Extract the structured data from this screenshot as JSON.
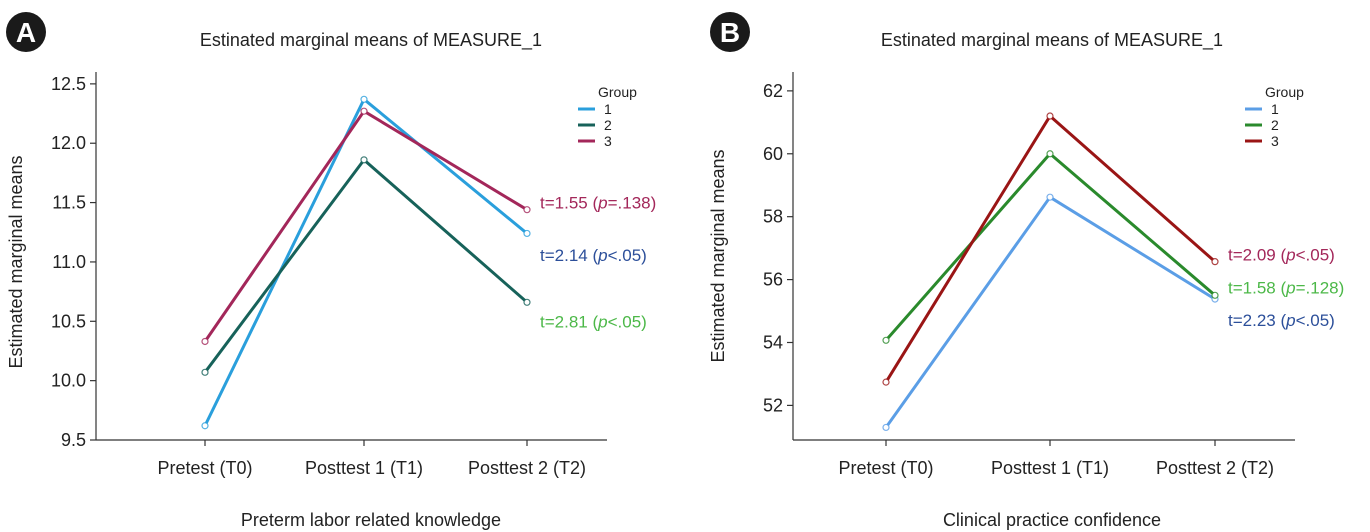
{
  "panels": [
    {
      "badge": "A",
      "title": "Estinated marginal means of MEASURE_1",
      "legend_title": "Group",
      "xlabel": "Preterm labor related knowledge",
      "ylabel": "Estimated marginal means"
    },
    {
      "badge": "B",
      "title": "Estinated marginal means of MEASURE_1",
      "legend_title": "Group",
      "xlabel": "Clinical practice confidence",
      "ylabel": "Estimated marginal means"
    }
  ],
  "chart_data": [
    {
      "type": "line",
      "title": "Estinated marginal means of MEASURE_1",
      "xlabel": "Preterm labor related knowledge",
      "ylabel": "Estimated marginal means",
      "categories": [
        "Pretest (T0)",
        "Posttest 1 (T1)",
        "Posttest 2 (T2)"
      ],
      "ylim": [
        9.5,
        12.6
      ],
      "yticks": [
        9.5,
        10.0,
        10.5,
        11.0,
        11.5,
        12.0,
        12.5
      ],
      "ytick_labels": [
        "9.5",
        "10.0",
        "10.5",
        "11.0",
        "11.5",
        "12.0",
        "12.5"
      ],
      "legend_title": "Group",
      "legend_position": "top-right",
      "series": [
        {
          "name": "1",
          "color": "#2a9fdc",
          "values": [
            9.62,
            12.37,
            11.24
          ]
        },
        {
          "name": "2",
          "color": "#17625a",
          "values": [
            10.07,
            11.86,
            10.66
          ]
        },
        {
          "name": "3",
          "color": "#a3275a",
          "values": [
            10.33,
            12.27,
            11.44
          ]
        }
      ],
      "annotations": [
        {
          "prefix": "t=1.55 (",
          "p": "p",
          "suffix": "=.138)",
          "color": "#a3275a",
          "x_index": 2,
          "y": 11.5
        },
        {
          "prefix": "t=2.14 (",
          "p": "p",
          "suffix": "<.05)",
          "color": "#2c4f9a",
          "x_index": 2,
          "y": 11.06
        },
        {
          "prefix": "t=2.81 (",
          "p": "p",
          "suffix": "<.05)",
          "color": "#4cb848",
          "x_index": 2,
          "y": 10.5
        }
      ]
    },
    {
      "type": "line",
      "title": "Estinated marginal means of MEASURE_1",
      "xlabel": "Clinical practice confidence",
      "ylabel": "Estimated marginal means",
      "categories": [
        "Pretest (T0)",
        "Posttest 1 (T1)",
        "Posttest 2 (T2)"
      ],
      "ylim": [
        50.9,
        62.6
      ],
      "yticks": [
        52,
        54,
        56,
        58,
        60,
        62
      ],
      "ytick_labels": [
        "52",
        "54",
        "56",
        "58",
        "60",
        "62"
      ],
      "legend_title": "Group",
      "legend_position": "top-right",
      "series": [
        {
          "name": "1",
          "color": "#5b9ee6",
          "values": [
            51.3,
            58.62,
            55.38
          ]
        },
        {
          "name": "2",
          "color": "#2a8a2c",
          "values": [
            54.07,
            60.0,
            55.5
          ]
        },
        {
          "name": "3",
          "color": "#9a1515",
          "values": [
            52.74,
            61.2,
            56.57
          ]
        }
      ],
      "annotations": [
        {
          "prefix": "t=2.09 (",
          "p": "p",
          "suffix": "<.05)",
          "color": "#a3275a",
          "x_index": 2,
          "y": 56.8
        },
        {
          "prefix": "t=1.58 (",
          "p": "p",
          "suffix": "=.128)",
          "color": "#4cb848",
          "x_index": 2,
          "y": 55.75
        },
        {
          "prefix": "t=2.23 (",
          "p": "p",
          "suffix": "<.05)",
          "color": "#2c4f9a",
          "x_index": 2,
          "y": 54.72
        }
      ]
    }
  ]
}
